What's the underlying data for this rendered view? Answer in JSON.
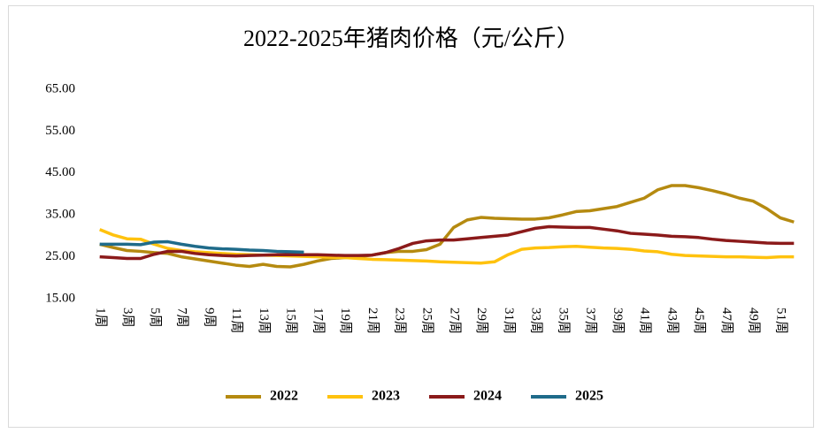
{
  "chart_data": {
    "type": "line",
    "title": "2022-2025年猪肉价格（元/公斤）",
    "categories": [
      "1周",
      null,
      "3周",
      null,
      "5周",
      null,
      "7周",
      null,
      "9周",
      null,
      "11周",
      null,
      "13周",
      null,
      "15周",
      null,
      "17周",
      null,
      "19周",
      null,
      "21周",
      null,
      "23周",
      null,
      "25周",
      null,
      "27周",
      null,
      "29周",
      null,
      "31周",
      null,
      "33周",
      null,
      "35周",
      null,
      "37周",
      null,
      "39周",
      null,
      "41周",
      null,
      "43周",
      null,
      "45周",
      null,
      "47周",
      null,
      "49周",
      null,
      "51周",
      null
    ],
    "series": [
      {
        "name": "2022",
        "color": "#b58a10",
        "values": [
          28,
          27.2,
          26.5,
          26.3,
          26,
          25.8,
          25,
          24.5,
          24,
          23.5,
          23,
          22.7,
          23.2,
          22.7,
          22.6,
          23.2,
          24,
          24.6,
          24.8,
          25,
          25.4,
          26,
          26.3,
          26.3,
          26.7,
          28,
          32,
          33.8,
          34.4,
          34.2,
          34.1,
          34,
          34,
          34.3,
          35,
          35.8,
          36,
          36.5,
          37,
          38,
          39,
          41,
          42,
          42,
          41.5,
          40.8,
          40,
          39,
          38.3,
          36.5,
          34.3,
          33.3
        ]
      },
      {
        "name": "2023",
        "color": "#ffc20e",
        "values": [
          31.5,
          30.2,
          29.3,
          29.2,
          28,
          27,
          26.5,
          26.2,
          26,
          25.8,
          25.6,
          25.5,
          25.4,
          25.3,
          25.2,
          25.1,
          25,
          24.9,
          24.8,
          24.6,
          24.4,
          24.3,
          24.2,
          24.1,
          24,
          23.8,
          23.7,
          23.6,
          23.5,
          23.8,
          25.5,
          26.8,
          27.1,
          27.2,
          27.4,
          27.5,
          27.3,
          27.1,
          27,
          26.8,
          26.4,
          26.2,
          25.6,
          25.3,
          25.2,
          25.1,
          25,
          25,
          24.9,
          24.8,
          25,
          25
        ]
      },
      {
        "name": "2024",
        "color": "#8b1a1a",
        "values": [
          25,
          24.8,
          24.6,
          24.6,
          25.6,
          26.3,
          26.3,
          25.8,
          25.5,
          25.3,
          25.2,
          25.3,
          25.4,
          25.5,
          25.5,
          25.5,
          25.5,
          25.4,
          25.3,
          25.3,
          25.4,
          26,
          27,
          28.2,
          28.8,
          29,
          29,
          29.3,
          29.6,
          29.9,
          30.2,
          31,
          31.8,
          32.2,
          32.1,
          32,
          32,
          31.6,
          31.2,
          30.6,
          30.4,
          30.2,
          29.9,
          29.8,
          29.6,
          29.2,
          28.9,
          28.7,
          28.5,
          28.3,
          28.2,
          28.2
        ]
      },
      {
        "name": "2025",
        "color": "#1f6b8a",
        "values": [
          28,
          28,
          28,
          27.9,
          28.5,
          28.6,
          28,
          27.5,
          27.1,
          26.9,
          26.8,
          26.6,
          26.5,
          26.3,
          26.2,
          26.1,
          null,
          null,
          null,
          null,
          null,
          null,
          null,
          null,
          null,
          null,
          null,
          null,
          null,
          null,
          null,
          null,
          null,
          null,
          null,
          null,
          null,
          null,
          null,
          null,
          null,
          null,
          null,
          null,
          null,
          null,
          null,
          null,
          null,
          null,
          null,
          null
        ]
      }
    ],
    "ylim": [
      15,
      65
    ],
    "yticks": [
      {
        "value": 15,
        "label": "15.00"
      },
      {
        "value": 25,
        "label": "25.00"
      },
      {
        "value": 35,
        "label": "35.00"
      },
      {
        "value": 45,
        "label": "45.00"
      },
      {
        "value": 55,
        "label": "55.00"
      },
      {
        "value": 65,
        "label": "65.00"
      }
    ],
    "grid": false,
    "legend": "bottom"
  }
}
